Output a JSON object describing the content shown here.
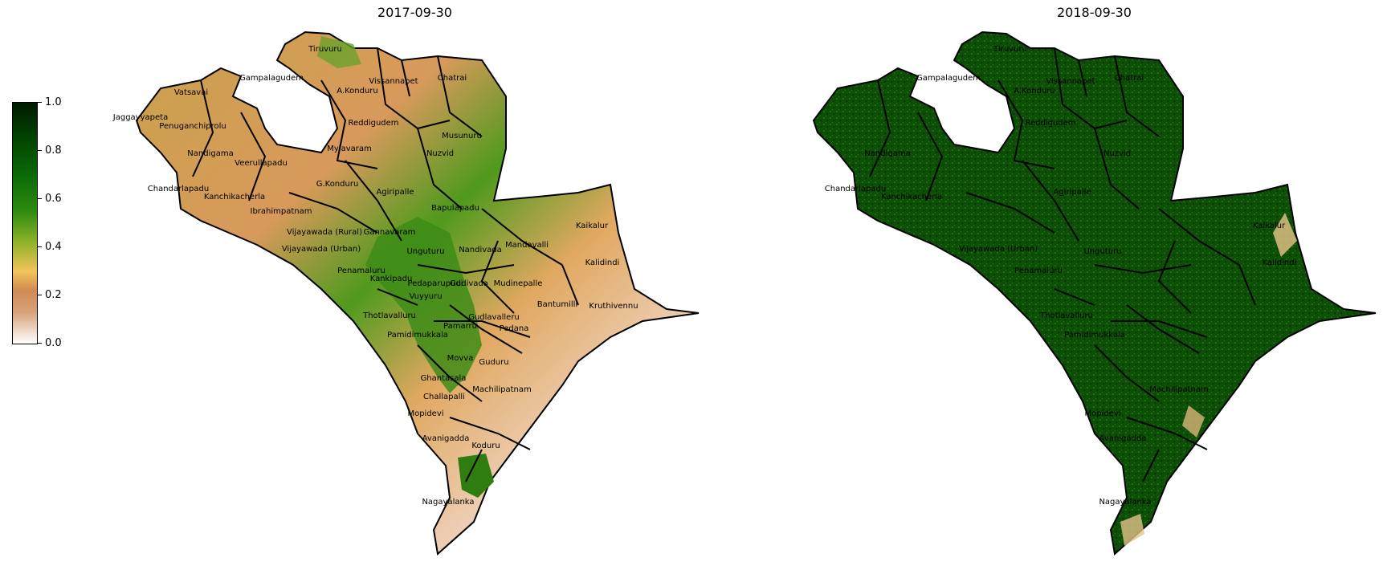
{
  "titles": {
    "left": "2017-09-30",
    "right": "2018-09-30"
  },
  "colorbar": {
    "ticks": [
      "1.0",
      "0.8",
      "0.6",
      "0.4",
      "0.2",
      "0.0"
    ],
    "colors": [
      "#ffffff",
      "#d7a27a",
      "#d08a52",
      "#f2c45a",
      "#8fb22a",
      "#2e8b10",
      "#0a6a06",
      "#004500",
      "#001a00"
    ]
  },
  "left_labels": [
    "Tiruvuru",
    "Vatsavai",
    "Gampalagudem",
    "A.Konduru",
    "Vissannapet",
    "Chatrai",
    "Jaggayyapeta",
    "Penuganchiprolu",
    "Reddigudem",
    "Musunuru",
    "Nandigama",
    "Veerullapadu",
    "Mylavaram",
    "Nuzvid",
    "Chandarlapadu",
    "G.Konduru",
    "Kanchikacherla",
    "Agiripalle",
    "Ibrahimpatnam",
    "Bapulapadu",
    "Vijayawada (Rural)",
    "Gannavaram",
    "Kaikalur",
    "Vijayawada (Urban)",
    "Unguturu",
    "Nandivada",
    "Mandavalli",
    "Kalidindi",
    "Penamaluru",
    "Kankipadu",
    "Pedaparupudi",
    "Gudivada",
    "Mudinepalle",
    "Vuyyuru",
    "Gudlavalleru",
    "Bantumilli",
    "Kruthivennu",
    "Thotlavalluru",
    "Pamarru",
    "Pedana",
    "Pamidimukkala",
    "Movva",
    "Guduru",
    "Ghantasala",
    "Machilipatnam",
    "Challapalli",
    "Mopidevi",
    "Avanigadda",
    "Koduru",
    "Nagayalanka"
  ],
  "right_labels": [
    "Tiruvuru",
    "Gampalagudem",
    "A.Konduru",
    "Vissannapet",
    "Chatrai",
    "Nandigama",
    "Reddigudem",
    "Nuzvid",
    "Chandarlapadu",
    "Kanchikacherla",
    "Agiripalle",
    "Vijayawada (Urban)",
    "Unguturu",
    "Kaikalur",
    "Kalidindi",
    "Penamaluru",
    "Thotlavalluru",
    "Pamidimukkala",
    "Machilipatnam",
    "Mopidevi",
    "Avanigadda",
    "Nagayalanka"
  ],
  "legend_colors": {
    "low": "#ffffff",
    "high": "#001a00",
    "boundary": "#000000"
  }
}
